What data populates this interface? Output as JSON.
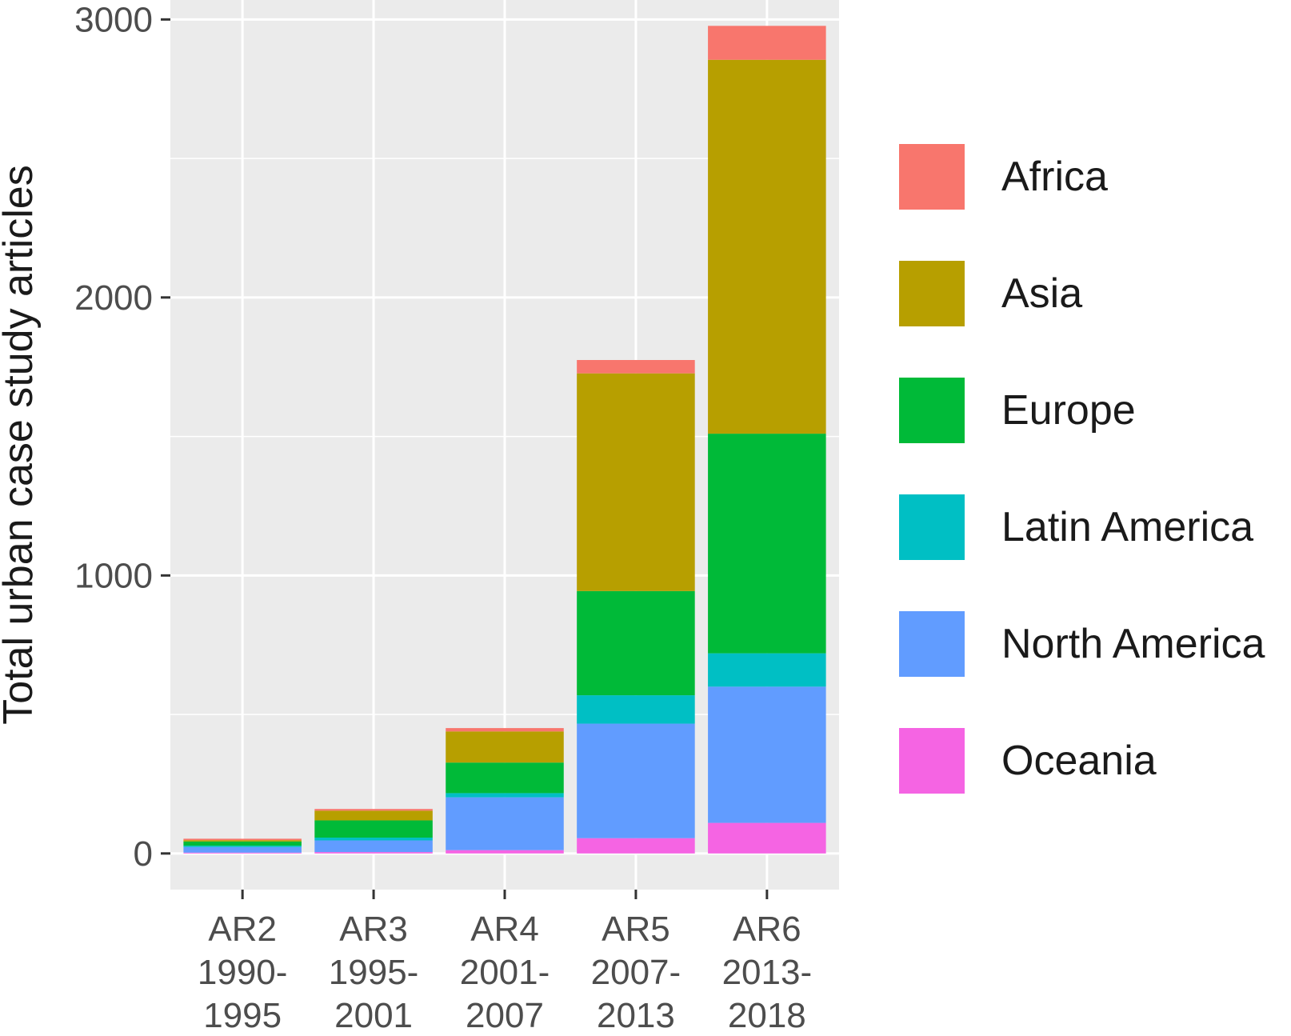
{
  "chart_data": {
    "type": "bar",
    "stacked": true,
    "title": "",
    "xlabel": "",
    "ylabel": "Total urban case study articles",
    "ylim": [
      -130,
      3070
    ],
    "yticks": [
      0,
      1000,
      2000,
      3000
    ],
    "grid": true,
    "legend_position": "right",
    "categories": [
      [
        "AR2",
        "1990-",
        "1995"
      ],
      [
        "AR3",
        "1995-",
        "2001"
      ],
      [
        "AR4",
        "2001-",
        "2007"
      ],
      [
        "AR5",
        "2007-",
        "2013"
      ],
      [
        "AR6",
        "2013-",
        "2018"
      ]
    ],
    "series": [
      {
        "name": "Oceania",
        "color": "#F564E3",
        "values": [
          3,
          5,
          12,
          55,
          110
        ]
      },
      {
        "name": "North America",
        "color": "#619CFF",
        "values": [
          20,
          42,
          190,
          412,
          490
        ]
      },
      {
        "name": "Latin America",
        "color": "#00BFC4",
        "values": [
          5,
          10,
          15,
          102,
          120
        ]
      },
      {
        "name": "Europe",
        "color": "#00BA38",
        "values": [
          15,
          62,
          110,
          375,
          790
        ]
      },
      {
        "name": "Asia",
        "color": "#B79F00",
        "values": [
          5,
          35,
          112,
          783,
          1345
        ]
      },
      {
        "name": "Africa",
        "color": "#F8766D",
        "values": [
          5,
          6,
          12,
          48,
          122
        ]
      }
    ],
    "legend_order": [
      "Africa",
      "Asia",
      "Europe",
      "Latin America",
      "North America",
      "Oceania"
    ]
  }
}
